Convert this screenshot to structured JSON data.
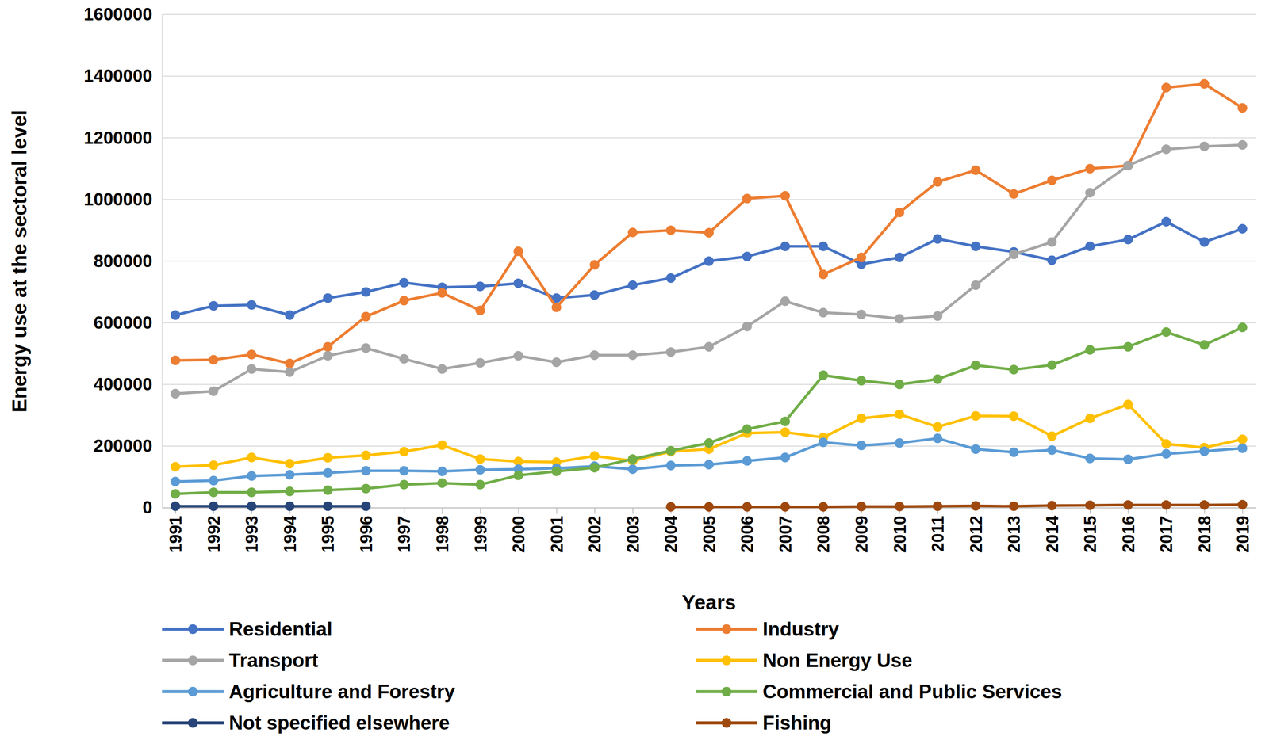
{
  "chart_data": {
    "type": "line",
    "x_label": "Years",
    "y_label": "Energy use at the sectoral level",
    "categories": [
      "1991",
      "1992",
      "1993",
      "1994",
      "1995",
      "1996",
      "1997",
      "1998",
      "1999",
      "2000",
      "2001",
      "2002",
      "2003",
      "2004",
      "2005",
      "2006",
      "2007",
      "2008",
      "2009",
      "2010",
      "2011",
      "2012",
      "2013",
      "2014",
      "2015",
      "2016",
      "2017",
      "2018",
      "2019"
    ],
    "ylim": [
      0,
      1600000
    ],
    "yticks": [
      0,
      200000,
      400000,
      600000,
      800000,
      1000000,
      1200000,
      1400000,
      1600000
    ],
    "grid": true,
    "legend": "bottom",
    "marker": "circle",
    "line_style": "solid",
    "series": [
      {
        "name": "Residential",
        "color": "#4472c4",
        "values": [
          625000,
          655000,
          658000,
          625000,
          680000,
          700000,
          730000,
          715000,
          718000,
          728000,
          680000,
          690000,
          722000,
          745000,
          800000,
          815000,
          848000,
          848000,
          790000,
          812000,
          872000,
          848000,
          830000,
          803000,
          848000,
          870000,
          928000,
          862000,
          905000
        ]
      },
      {
        "name": "Industry",
        "color": "#ed7d31",
        "values": [
          478000,
          480000,
          497000,
          468000,
          522000,
          620000,
          672000,
          697000,
          640000,
          832000,
          650000,
          788000,
          893000,
          900000,
          892000,
          1003000,
          1012000,
          757000,
          812000,
          958000,
          1057000,
          1095000,
          1018000,
          1062000,
          1100000,
          1110000,
          1363000,
          1375000,
          1297000
        ]
      },
      {
        "name": "Transport",
        "color": "#a5a5a5",
        "values": [
          370000,
          378000,
          450000,
          440000,
          493000,
          518000,
          483000,
          450000,
          470000,
          493000,
          472000,
          495000,
          495000,
          505000,
          522000,
          588000,
          670000,
          633000,
          627000,
          613000,
          622000,
          722000,
          822000,
          862000,
          1022000,
          1110000,
          1163000,
          1172000,
          1177000
        ]
      },
      {
        "name": "Non Energy Use",
        "color": "#ffc000",
        "values": [
          133000,
          138000,
          163000,
          143000,
          162000,
          170000,
          182000,
          203000,
          158000,
          150000,
          148000,
          168000,
          152000,
          182000,
          190000,
          242000,
          245000,
          228000,
          290000,
          303000,
          262000,
          298000,
          297000,
          232000,
          290000,
          335000,
          207000,
          195000,
          222000
        ]
      },
      {
        "name": "Agriculture and Forestry",
        "color": "#5b9bd5",
        "values": [
          85000,
          88000,
          103000,
          107000,
          113000,
          120000,
          120000,
          118000,
          123000,
          125000,
          128000,
          135000,
          125000,
          137000,
          140000,
          152000,
          163000,
          212000,
          202000,
          210000,
          225000,
          190000,
          180000,
          187000,
          160000,
          157000,
          175000,
          183000,
          193000
        ]
      },
      {
        "name": "Commercial and Public Services",
        "color": "#70ad47",
        "values": [
          45000,
          50000,
          50000,
          53000,
          57000,
          62000,
          75000,
          80000,
          75000,
          105000,
          118000,
          130000,
          158000,
          185000,
          210000,
          255000,
          280000,
          430000,
          412000,
          400000,
          417000,
          462000,
          448000,
          463000,
          512000,
          522000,
          570000,
          528000,
          585000
        ]
      },
      {
        "name": "Not specified elsewhere",
        "color": "#264478",
        "values": [
          5000,
          5000,
          5000,
          5000,
          5000,
          5000,
          null,
          null,
          null,
          null,
          null,
          null,
          null,
          null,
          null,
          null,
          null,
          null,
          null,
          null,
          null,
          null,
          null,
          null,
          null,
          null,
          null,
          null,
          null
        ]
      },
      {
        "name": "Fishing",
        "color": "#9e480e",
        "values": [
          null,
          null,
          null,
          null,
          null,
          null,
          null,
          null,
          null,
          null,
          null,
          null,
          null,
          3000,
          3000,
          3000,
          3000,
          3000,
          4000,
          4000,
          5000,
          6000,
          5000,
          7000,
          8000,
          9000,
          9000,
          9000,
          10000
        ]
      }
    ]
  }
}
